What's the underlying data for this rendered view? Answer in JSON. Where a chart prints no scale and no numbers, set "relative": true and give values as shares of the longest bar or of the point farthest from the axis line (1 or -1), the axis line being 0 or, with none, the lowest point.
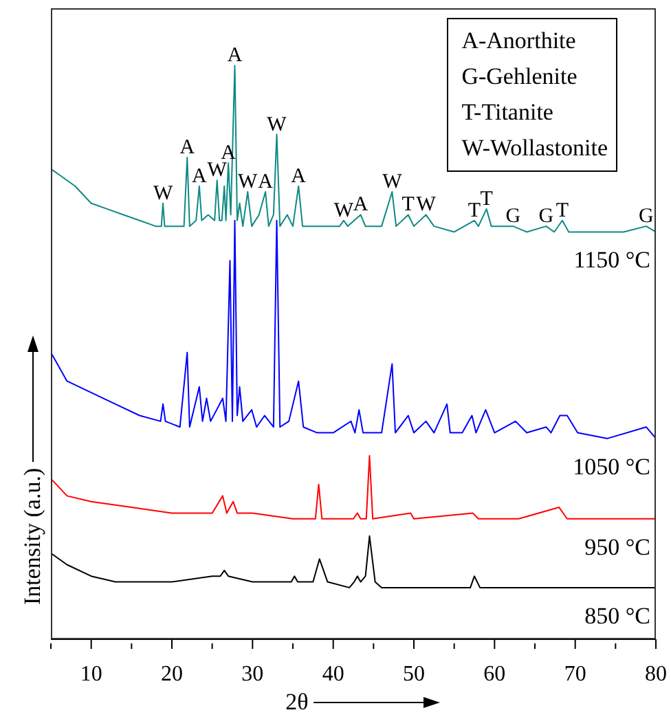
{
  "chart_data": {
    "type": "line",
    "relative": true,
    "tick_labels": "x",
    "line_style": "solid",
    "xlabel": "2θ",
    "ylabel": "Intensity (a.u.)",
    "xlim": [
      5,
      80
    ],
    "xticks": [
      {
        "value": 5,
        "label": null
      },
      10,
      {
        "value": 15,
        "label": null
      },
      20,
      {
        "value": 25,
        "label": null
      },
      30,
      {
        "value": 35,
        "label": null
      },
      40,
      {
        "value": 45,
        "label": null
      },
      50,
      {
        "value": 55,
        "label": null
      },
      60,
      {
        "value": 65,
        "label": null
      },
      70,
      {
        "value": 75,
        "label": null
      },
      80
    ],
    "series": [
      {
        "name": "1150 °C",
        "color": "#0e8a85",
        "x": [
          5,
          6,
          8,
          10,
          12,
          14,
          16,
          18,
          18.7,
          18.9,
          19.1,
          20,
          21.5,
          21.9,
          22.2,
          23,
          23.4,
          23.7,
          24.5,
          25.3,
          25.6,
          25.9,
          26.2,
          26.5,
          26.7,
          27.0,
          27.3,
          27.8,
          28.1,
          28.4,
          28.8,
          29.4,
          29.9,
          30.8,
          31.6,
          32.0,
          32.6,
          33.0,
          33.4,
          34.3,
          35,
          35.7,
          36.2,
          37,
          39,
          40.8,
          41.3,
          41.8,
          43.4,
          44,
          46,
          47.3,
          47.8,
          49.3,
          50,
          51.5,
          52.5,
          55,
          57.5,
          58,
          59.0,
          59.6,
          62.3,
          64,
          66.4,
          67.4,
          68.4,
          69.2,
          72,
          76,
          78.8,
          80
        ],
        "values": [
          0.82,
          0.81,
          0.79,
          0.76,
          0.75,
          0.74,
          0.73,
          0.72,
          0.72,
          0.76,
          0.72,
          0.72,
          0.72,
          0.84,
          0.72,
          0.73,
          0.79,
          0.73,
          0.74,
          0.73,
          0.8,
          0.73,
          0.73,
          0.79,
          0.73,
          0.83,
          0.74,
          1,
          0.73,
          0.76,
          0.72,
          0.78,
          0.72,
          0.74,
          0.78,
          0.72,
          0.74,
          0.88,
          0.72,
          0.74,
          0.72,
          0.79,
          0.72,
          0.72,
          0.72,
          0.72,
          0.73,
          0.72,
          0.74,
          0.72,
          0.72,
          0.78,
          0.72,
          0.74,
          0.72,
          0.74,
          0.72,
          0.71,
          0.73,
          0.72,
          0.75,
          0.72,
          0.72,
          0.71,
          0.72,
          0.71,
          0.73,
          0.71,
          0.71,
          0.71,
          0.72,
          0.71
        ]
      },
      {
        "name": "1050 °C",
        "color": "#0000ff",
        "x": [
          5,
          7,
          10,
          13,
          16,
          18.6,
          18.9,
          19.2,
          21,
          21.9,
          22.2,
          23.4,
          23.8,
          24.3,
          24.8,
          26.3,
          26.7,
          27.2,
          27.5,
          27.8,
          28.1,
          28.4,
          28.8,
          29.9,
          30.5,
          31.5,
          32.6,
          33.0,
          33.4,
          34.5,
          35.7,
          36.3,
          38,
          40,
          42.2,
          42.7,
          43.2,
          43.7,
          46,
          47.3,
          47.7,
          49.3,
          50,
          51.5,
          52.5,
          54.1,
          54.5,
          56,
          57.2,
          57.7,
          58.9,
          60,
          62.6,
          64,
          66.4,
          67,
          68.1,
          69,
          70.3,
          74,
          78.8,
          80
        ],
        "values": [
          0.5,
          0.45,
          0.43,
          0.41,
          0.39,
          0.38,
          0.41,
          0.38,
          0.37,
          0.5,
          0.37,
          0.44,
          0.38,
          0.42,
          0.38,
          0.42,
          0.38,
          0.66,
          0.38,
          0.73,
          0.39,
          0.44,
          0.38,
          0.4,
          0.37,
          0.39,
          0.37,
          0.73,
          0.37,
          0.38,
          0.45,
          0.37,
          0.36,
          0.36,
          0.38,
          0.36,
          0.4,
          0.36,
          0.36,
          0.48,
          0.36,
          0.39,
          0.36,
          0.38,
          0.36,
          0.41,
          0.36,
          0.36,
          0.39,
          0.36,
          0.4,
          0.36,
          0.38,
          0.36,
          0.37,
          0.36,
          0.39,
          0.39,
          0.36,
          0.35,
          0.37,
          0.35
        ]
      },
      {
        "name": "950 °C",
        "color": "#ff0000",
        "x": [
          5,
          7,
          10,
          15,
          20,
          25,
          26.3,
          26.8,
          27.6,
          28.1,
          30,
          35,
          37.8,
          38.2,
          38.6,
          42.5,
          43.0,
          43.4,
          44.1,
          44.5,
          44.9,
          49.6,
          50,
          57.3,
          58,
          63,
          68.0,
          69,
          80
        ],
        "values": [
          0.28,
          0.25,
          0.24,
          0.23,
          0.22,
          0.22,
          0.25,
          0.22,
          0.24,
          0.22,
          0.22,
          0.21,
          0.21,
          0.27,
          0.21,
          0.21,
          0.22,
          0.21,
          0.21,
          0.32,
          0.21,
          0.22,
          0.21,
          0.22,
          0.21,
          0.21,
          0.23,
          0.21,
          0.21
        ]
      },
      {
        "name": "850 °C",
        "color": "#000000",
        "x": [
          5,
          7,
          10,
          13,
          15,
          20,
          25,
          26.0,
          26.5,
          27.0,
          30,
          34.8,
          35.2,
          35.6,
          37.5,
          38.3,
          39.3,
          42,
          42.6,
          43.0,
          43.4,
          44.0,
          44.5,
          45.2,
          46,
          50,
          57.0,
          57.5,
          58.2,
          66.4,
          72.5,
          80
        ],
        "values": [
          0.15,
          0.13,
          0.11,
          0.1,
          0.1,
          0.1,
          0.11,
          0.11,
          0.12,
          0.11,
          0.1,
          0.1,
          0.11,
          0.1,
          0.1,
          0.14,
          0.1,
          0.09,
          0.1,
          0.11,
          0.1,
          0.11,
          0.18,
          0.1,
          0.09,
          0.09,
          0.09,
          0.11,
          0.09,
          0.09,
          0.09,
          0.09
        ]
      }
    ],
    "annotations": [
      "A-Anorthite",
      "G-Gehlenite",
      "T-Titanite",
      "W-Wollastonite",
      {
        "text": "W",
        "x": 18.9,
        "y": 0.76
      },
      {
        "text": "A",
        "x": 21.9,
        "y": 0.84
      },
      {
        "text": "A",
        "x": 23.4,
        "y": 0.79
      },
      {
        "text": "W",
        "x": 25.6,
        "y": 0.8
      },
      {
        "text": "A",
        "x": 27.0,
        "y": 0.83
      },
      {
        "text": "A",
        "x": 27.8,
        "y": 1
      },
      {
        "text": "W",
        "x": 29.4,
        "y": 0.78
      },
      {
        "text": "A",
        "x": 31.6,
        "y": 0.78
      },
      {
        "text": "W",
        "x": 33.0,
        "y": 0.88
      },
      {
        "text": "A",
        "x": 35.7,
        "y": 0.79
      },
      {
        "text": "W",
        "x": 41.3,
        "y": 0.73
      },
      {
        "text": "A",
        "x": 43.4,
        "y": 0.74
      },
      {
        "text": "W",
        "x": 47.3,
        "y": 0.78
      },
      {
        "text": "T",
        "x": 49.3,
        "y": 0.74
      },
      {
        "text": "W",
        "x": 51.5,
        "y": 0.74
      },
      {
        "text": "T",
        "x": 57.5,
        "y": 0.73
      },
      {
        "text": "T",
        "x": 59.0,
        "y": 0.75
      },
      {
        "text": "G",
        "x": 62.3,
        "y": 0.72
      },
      {
        "text": "G",
        "x": 66.4,
        "y": 0.72
      },
      {
        "text": "T",
        "x": 68.4,
        "y": 0.73
      },
      {
        "text": "G",
        "x": 78.8,
        "y": 0.72
      }
    ]
  }
}
